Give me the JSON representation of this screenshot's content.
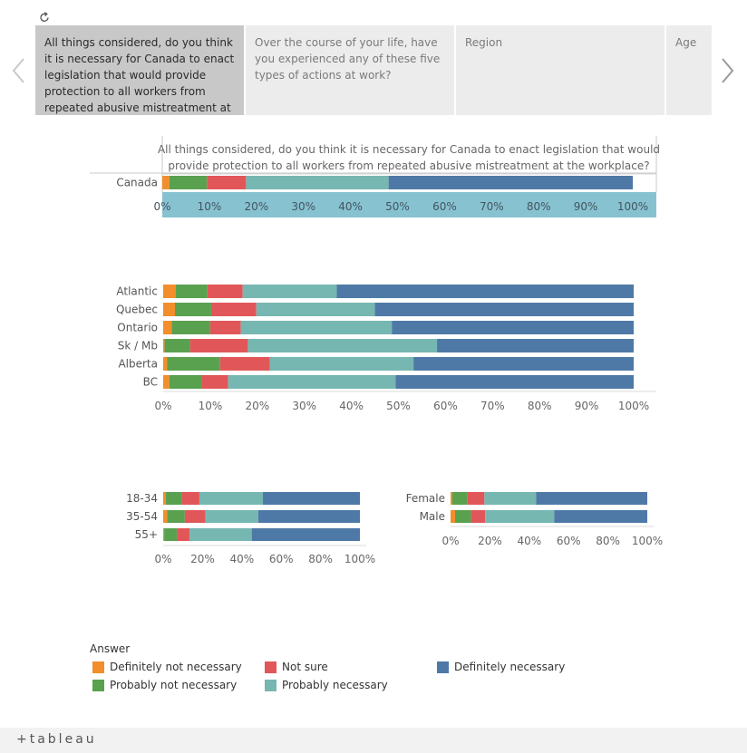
{
  "toolbar": {
    "reset_icon": "revert-icon"
  },
  "tabs": [
    {
      "label": "All things considered, do you think it is necessary for Canada to enact legislation that would provide protection to all workers from repeated abusive mistreatment at the workplace?",
      "active": true
    },
    {
      "label": "Over the course of your life, have you experienced any of these five types of actions at work?",
      "active": false
    },
    {
      "label": "Region",
      "active": false
    },
    {
      "label": "Age",
      "active": false
    }
  ],
  "nav": {
    "prev_icon": "chevron-left-icon",
    "next_icon": "chevron-right-icon"
  },
  "legend": {
    "title": "Answer",
    "items": [
      {
        "label": "Definitely not necessary",
        "color": "#f28e2b"
      },
      {
        "label": "Probably not necessary",
        "color": "#59a14f"
      },
      {
        "label": "Not sure",
        "color": "#e15759"
      },
      {
        "label": "Probably necessary",
        "color": "#76b7b2"
      },
      {
        "label": "Definitely necessary",
        "color": "#4e79a7"
      }
    ]
  },
  "footer": {
    "logo": "+tableau"
  },
  "chart_data": [
    {
      "type": "bar",
      "orientation": "horizontal-stacked-100",
      "title": "All things considered, do you think it is necessary for Canada to enact legislation that would provide protection to all workers from repeated abusive mistreatment at the workplace?",
      "categories": [
        "Canada"
      ],
      "xlim": [
        0,
        100
      ],
      "ticks": [
        "0%",
        "10%",
        "20%",
        "30%",
        "40%",
        "50%",
        "60%",
        "70%",
        "80%",
        "90%",
        "100%"
      ],
      "series": [
        {
          "name": "Definitely not necessary",
          "values": [
            1.5
          ]
        },
        {
          "name": "Probably not necessary",
          "values": [
            8
          ]
        },
        {
          "name": "Not sure",
          "values": [
            8.3
          ]
        },
        {
          "name": "Probably necessary",
          "values": [
            30.3
          ]
        },
        {
          "name": "Definitely necessary",
          "values": [
            51.9
          ]
        }
      ]
    },
    {
      "type": "bar",
      "orientation": "horizontal-stacked-100",
      "categories": [
        "Atlantic",
        "Quebec",
        "Ontario",
        "Sk / Mb",
        "Alberta",
        "BC"
      ],
      "xlim": [
        0,
        100
      ],
      "ticks": [
        "0%",
        "10%",
        "20%",
        "30%",
        "40%",
        "50%",
        "60%",
        "70%",
        "80%",
        "90%",
        "100%"
      ],
      "series": [
        {
          "name": "Definitely not necessary",
          "values": [
            2.7,
            2.5,
            1.8,
            0.3,
            0.8,
            1.3
          ]
        },
        {
          "name": "Probably not necessary",
          "values": [
            6.7,
            7.7,
            8.2,
            5.4,
            11.3,
            6.9
          ]
        },
        {
          "name": "Not sure",
          "values": [
            7.5,
            9.6,
            6.5,
            12.3,
            10.6,
            5.6
          ]
        },
        {
          "name": "Probably necessary",
          "values": [
            20.0,
            25.2,
            32.1,
            40.2,
            30.5,
            35.6
          ]
        },
        {
          "name": "Definitely necessary",
          "values": [
            63.1,
            55.0,
            51.4,
            41.8,
            46.8,
            50.6
          ]
        }
      ]
    },
    {
      "type": "bar",
      "orientation": "horizontal-stacked-100",
      "categories": [
        "18-34",
        "35-54",
        "55+"
      ],
      "xlim": [
        0,
        100
      ],
      "ticks": [
        "0%",
        "20%",
        "40%",
        "60%",
        "80%",
        "100%"
      ],
      "series": [
        {
          "name": "Definitely not necessary",
          "values": [
            1.4,
            2.0,
            0.5
          ]
        },
        {
          "name": "Probably not necessary",
          "values": [
            8.0,
            9.0,
            6.6
          ]
        },
        {
          "name": "Not sure",
          "values": [
            9.0,
            10.4,
            6.3
          ]
        },
        {
          "name": "Probably necessary",
          "values": [
            32.3,
            26.9,
            31.6
          ]
        },
        {
          "name": "Definitely necessary",
          "values": [
            49.3,
            51.7,
            55.0
          ]
        }
      ]
    },
    {
      "type": "bar",
      "orientation": "horizontal-stacked-100",
      "categories": [
        "Female",
        "Male"
      ],
      "xlim": [
        0,
        100
      ],
      "ticks": [
        "0%",
        "20%",
        "40%",
        "60%",
        "80%",
        "100%"
      ],
      "series": [
        {
          "name": "Definitely not necessary",
          "values": [
            0.9,
            2.3
          ]
        },
        {
          "name": "Probably not necessary",
          "values": [
            7.7,
            8.1
          ]
        },
        {
          "name": "Not sure",
          "values": [
            8.6,
            7.2
          ]
        },
        {
          "name": "Probably necessary",
          "values": [
            26.3,
            35.1
          ]
        },
        {
          "name": "Definitely necessary",
          "values": [
            56.5,
            47.3
          ]
        }
      ]
    }
  ]
}
